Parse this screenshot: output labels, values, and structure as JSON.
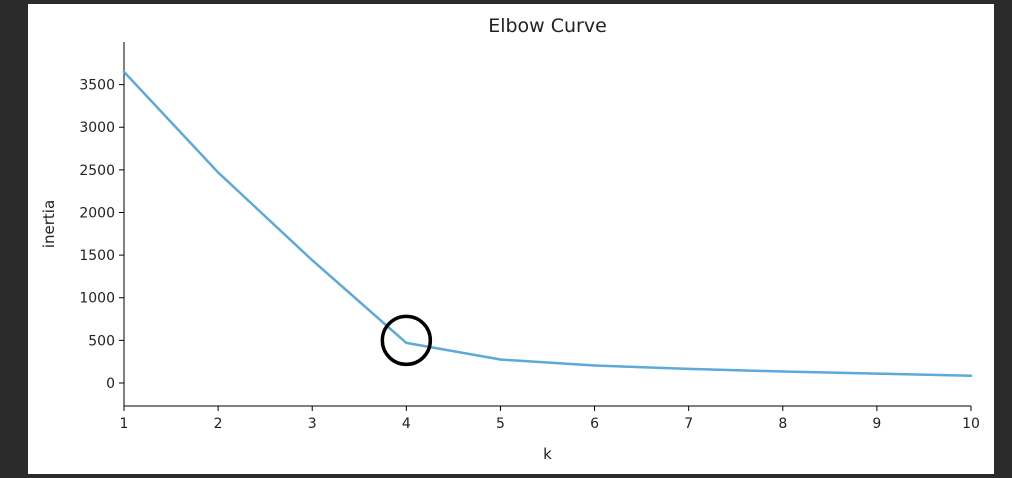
{
  "chart_data": {
    "type": "line",
    "title": "Elbow Curve",
    "xlabel": "k",
    "ylabel": "inertia",
    "x": [
      1,
      2,
      3,
      4,
      5,
      6,
      7,
      8,
      9,
      10
    ],
    "series": [
      {
        "values": [
          3650,
          2470,
          1440,
          470,
          275,
          205,
          165,
          135,
          110,
          85
        ]
      }
    ],
    "xlim": [
      1,
      10
    ],
    "ylim": [
      -270,
      4000
    ],
    "xticks": [
      1,
      2,
      3,
      4,
      5,
      6,
      7,
      8,
      9,
      10
    ],
    "yticks": [
      0,
      500,
      1000,
      1500,
      2000,
      2500,
      3000,
      3500
    ],
    "grid": false,
    "line_color": "#5DA9D9",
    "annotation": {
      "type": "circle",
      "x": 4,
      "y": 500,
      "color": "#000000"
    }
  }
}
